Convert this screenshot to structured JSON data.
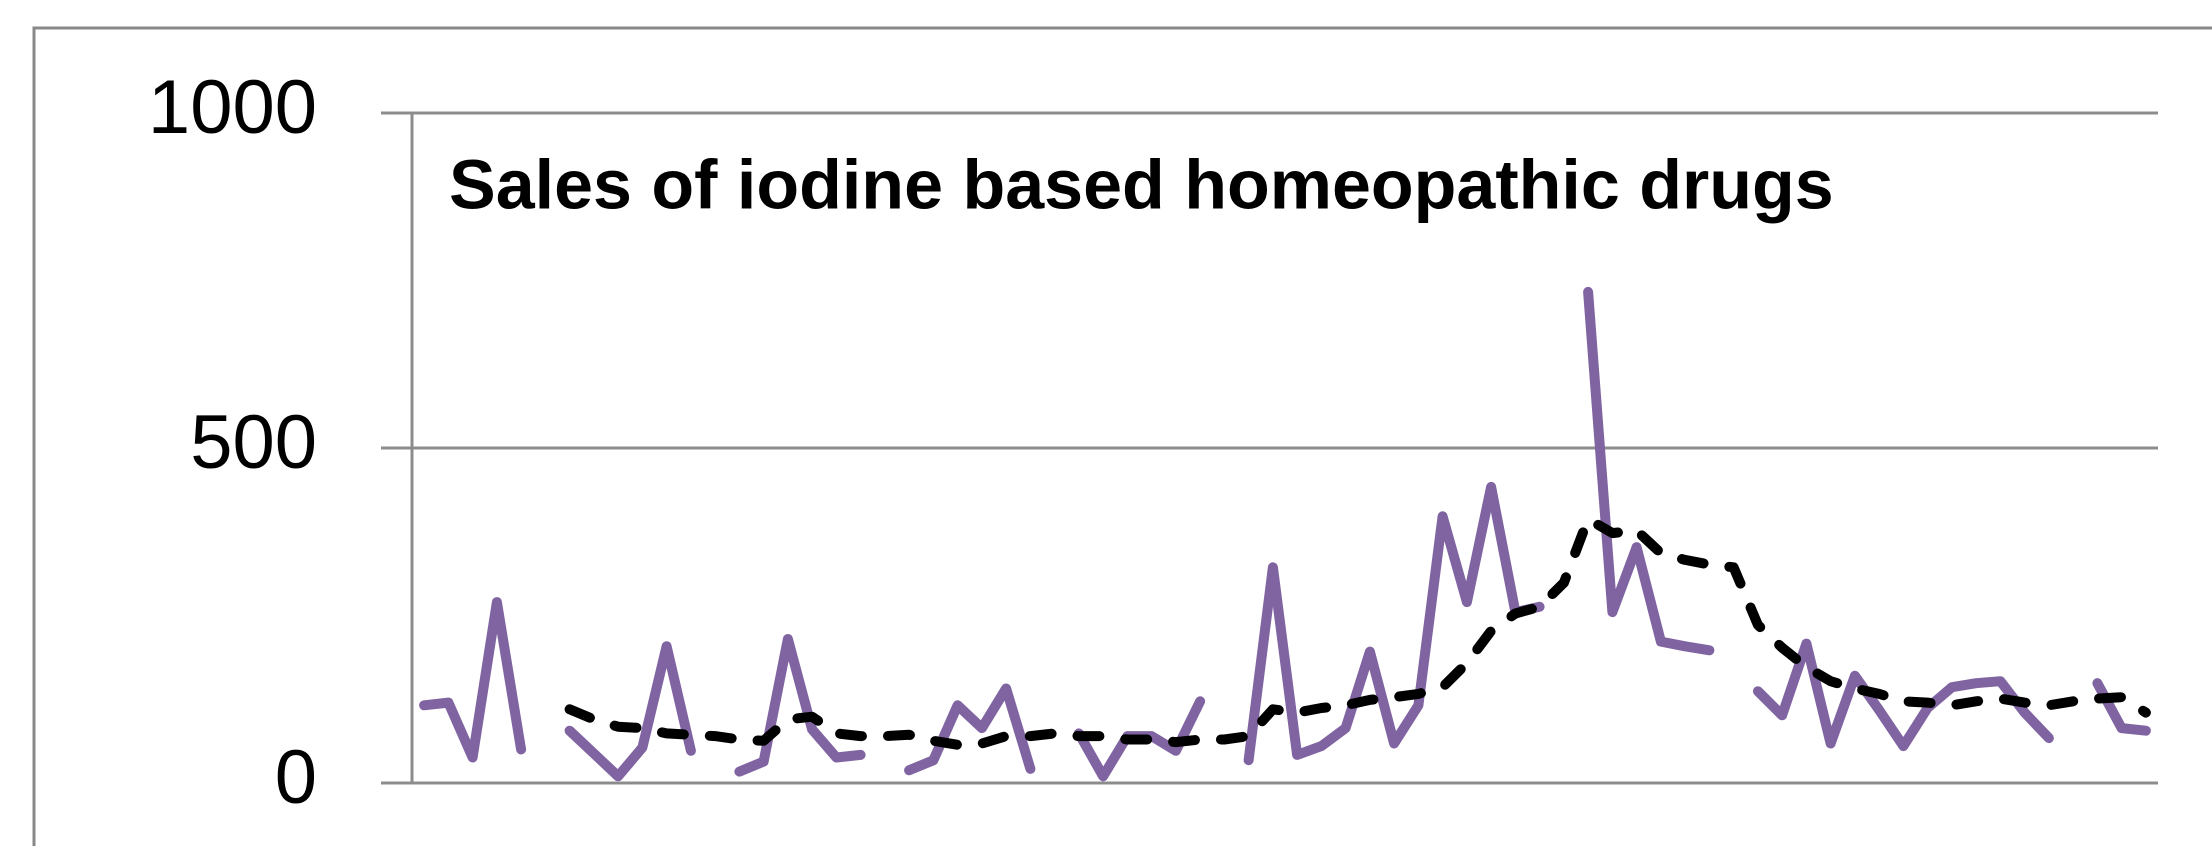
{
  "chart_data": {
    "type": "line",
    "title": "Sales of iodine based homeopathic drugs",
    "categories": [
      null,
      null,
      null,
      null,
      null,
      null,
      null,
      null,
      null,
      null,
      null,
      null,
      null,
      null,
      null,
      null,
      null,
      null,
      null,
      null,
      null,
      null,
      null,
      null,
      null,
      null,
      null,
      null,
      null,
      null,
      null,
      null,
      null,
      null,
      null,
      null,
      null,
      null,
      null,
      null,
      null,
      null,
      null,
      null,
      null,
      null,
      null,
      null,
      null,
      null,
      null,
      null,
      null,
      null,
      null,
      null,
      null,
      null,
      null,
      null,
      null,
      null,
      null,
      null,
      null,
      null,
      null,
      null,
      null,
      null,
      null,
      null
    ],
    "series": [
      {
        "color": "#8064a2",
        "dashed": false,
        "values": [
          116,
          120,
          38,
          270,
          50,
          null,
          78,
          44,
          10,
          53,
          204,
          48,
          null,
          17,
          32,
          215,
          80,
          38,
          42,
          null,
          19,
          34,
          116,
          82,
          141,
          21,
          null,
          74,
          10,
          70,
          70,
          48,
          122,
          null,
          34,
          322,
          42,
          55,
          82,
          196,
          59,
          116,
          398,
          270,
          442,
          255,
          263,
          null,
          733,
          255,
          352,
          211,
          204,
          198,
          null,
          137,
          101,
          208,
          59,
          160,
          109,
          55,
          112,
          143,
          149,
          152,
          105,
          67,
          null,
          149,
          82,
          78
        ]
      },
      {
        "color": "#000000",
        "dashed": true,
        "values": [
          null,
          null,
          null,
          null,
          null,
          null,
          110,
          95,
          84,
          82,
          74,
          72,
          70,
          65,
          63,
          95,
          99,
          74,
          70,
          70,
          72,
          63,
          57,
          59,
          70,
          70,
          74,
          70,
          70,
          65,
          65,
          61,
          65,
          65,
          70,
          110,
          105,
          112,
          116,
          124,
          128,
          133,
          143,
          179,
          227,
          253,
          263,
          299,
          394,
          373,
          377,
          343,
          333,
          326,
          322,
          236,
          202,
          173,
          152,
          141,
          133,
          122,
          120,
          116,
          122,
          126,
          120,
          116,
          122,
          126,
          128,
          105
        ]
      }
    ],
    "ylim": [
      0,
      1000
    ],
    "yticks": [
      0,
      500,
      1000
    ],
    "grid": true
  }
}
